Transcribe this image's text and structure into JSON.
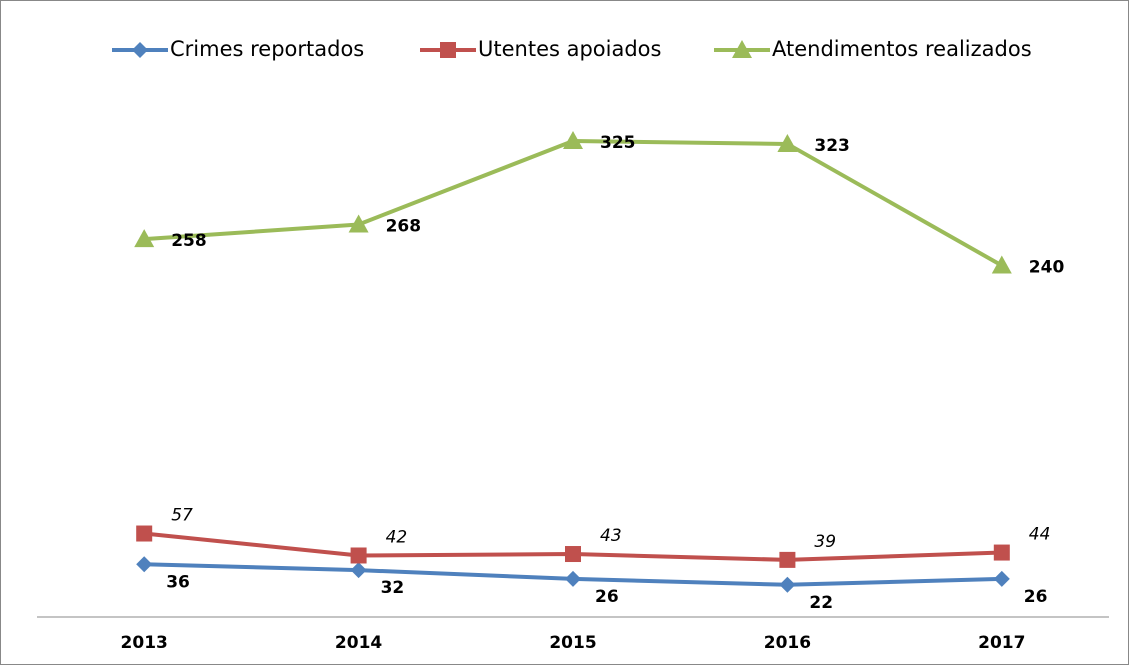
{
  "chart_data": {
    "type": "line",
    "categories": [
      "2013",
      "2014",
      "2015",
      "2016",
      "2017"
    ],
    "series": [
      {
        "name": "Crimes reportados",
        "color": "#4f81bd",
        "values": [
          36,
          32,
          26,
          22,
          26
        ]
      },
      {
        "name": "Utentes apoiados",
        "color": "#c0504d",
        "values": [
          57,
          42,
          43,
          39,
          44
        ]
      },
      {
        "name": "Atendimentos realizados",
        "color": "#9bbb59",
        "values": [
          258,
          268,
          325,
          323,
          240
        ]
      }
    ],
    "ylim": [
      0,
      350
    ],
    "legend": "top"
  }
}
